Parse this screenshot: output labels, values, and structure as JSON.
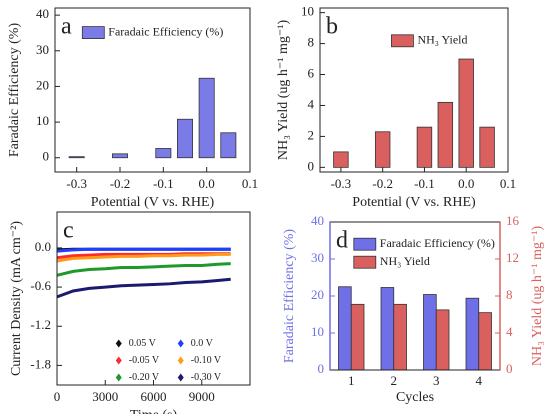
{
  "chart_data": [
    {
      "type": "bar",
      "panel_label": "a",
      "x": [
        -0.3,
        -0.2,
        -0.1,
        -0.05,
        0,
        0.05
      ],
      "series": [
        {
          "name": "Faradaic Efficiency (%)",
          "color": "#7b7be8",
          "values": [
            0.3,
            1.1,
            2.6,
            10.8,
            22.3,
            7.0
          ]
        }
      ],
      "xlabel": "Potential (V vs. RHE)",
      "ylabel": "Faradaic Efficiency (%)",
      "xlim": [
        -0.35,
        0.1
      ],
      "ylim": [
        -4,
        42
      ],
      "xticks": [
        -0.3,
        -0.2,
        -0.1,
        {
          "value": 0,
          "label": "0.0"
        },
        0.1
      ],
      "yticks": [
        0,
        10,
        20,
        30,
        40
      ],
      "legend": "upper left"
    },
    {
      "type": "bar",
      "panel_label": "b",
      "x": [
        -0.3,
        -0.2,
        -0.1,
        -0.05,
        0,
        0.05
      ],
      "series": [
        {
          "name": "NH₃ Yield",
          "color": "#d9605f",
          "values": [
            1.0,
            2.3,
            2.6,
            4.2,
            7.0,
            2.6
          ]
        }
      ],
      "xlabel": "Potential (V vs. RHE)",
      "ylabel": "NH₃ Yield (ug h⁻¹ mg⁻¹)",
      "xlim": [
        -0.35,
        0.1
      ],
      "ylim": [
        -0.3,
        10.3
      ],
      "xticks": [
        -0.3,
        -0.2,
        -0.1,
        {
          "value": 0,
          "label": "0.0"
        },
        0.1
      ],
      "yticks": [
        0,
        2,
        4,
        6,
        8,
        10
      ],
      "legend": "upper center"
    },
    {
      "type": "line",
      "panel_label": "c",
      "x": [
        0,
        1000,
        2000,
        3000,
        4000,
        5000,
        6000,
        7000,
        8000,
        9000,
        10000,
        10800
      ],
      "series": [
        {
          "name": "0.05 V",
          "color": "#111111",
          "values": [
            -0.03,
            -0.02,
            -0.02,
            -0.02,
            -0.02,
            -0.02,
            -0.02,
            -0.02,
            -0.02,
            -0.02,
            -0.02,
            -0.02
          ]
        },
        {
          "name": "0.0 V",
          "color": "#1f3fff",
          "values": [
            -0.05,
            -0.03,
            -0.02,
            -0.02,
            -0.02,
            -0.02,
            -0.02,
            -0.02,
            -0.02,
            -0.02,
            -0.02,
            -0.02
          ]
        },
        {
          "name": "-0.05 V",
          "color": "#ff2a2a",
          "values": [
            -0.15,
            -0.12,
            -0.11,
            -0.1,
            -0.1,
            -0.1,
            -0.1,
            -0.1,
            -0.09,
            -0.09,
            -0.09,
            -0.09
          ]
        },
        {
          "name": "-0.10 V",
          "color": "#ff9b1a",
          "values": [
            -0.2,
            -0.16,
            -0.15,
            -0.14,
            -0.13,
            -0.13,
            -0.12,
            -0.12,
            -0.11,
            -0.11,
            -0.1,
            -0.1
          ]
        },
        {
          "name": "-0.20 V",
          "color": "#1f9a2a",
          "values": [
            -0.42,
            -0.36,
            -0.33,
            -0.32,
            -0.3,
            -0.3,
            -0.29,
            -0.28,
            -0.27,
            -0.27,
            -0.25,
            -0.24
          ]
        },
        {
          "name": "-0.30 V",
          "color": "#1a1a70",
          "values": [
            -0.75,
            -0.66,
            -0.62,
            -0.6,
            -0.58,
            -0.57,
            -0.56,
            -0.55,
            -0.53,
            -0.52,
            -0.5,
            -0.48
          ]
        }
      ],
      "xlabel": "Time (s)",
      "ylabel": "Current Density (mA cm⁻²)",
      "xlim": [
        0,
        12000
      ],
      "ylim": [
        -2.1,
        0.55
      ],
      "xticks": [
        0,
        3000,
        6000,
        9000
      ],
      "yticks": [
        {
          "value": 0,
          "label": "0.0"
        },
        -0.6,
        -1.2,
        -1.8
      ],
      "legend": "lower center",
      "legend_columns": 2
    },
    {
      "type": "bar",
      "panel_label": "d",
      "categories": [
        "1",
        "2",
        "3",
        "4"
      ],
      "series": [
        {
          "name": "Faradaic Efficiency (%)",
          "color": "#6f6fe8",
          "values": [
            22.5,
            22.3,
            20.4,
            19.4
          ]
        },
        {
          "name": "NH₃ Yield",
          "color": "#d9605f",
          "axis": "y2",
          "values": [
            7.1,
            7.1,
            6.5,
            6.2
          ]
        }
      ],
      "xlabel": "Cycles",
      "ylabel": "Faradaic Efficiency (%)",
      "y2label": "NH₃ Yield (ug h⁻¹ mg⁻¹)",
      "ylim": [
        0,
        40
      ],
      "yticks": [
        0,
        10,
        20,
        30,
        40
      ],
      "y2lim": [
        0,
        16
      ],
      "y2ticks": [
        0,
        4,
        8,
        12,
        16
      ],
      "legend": "upper left"
    }
  ]
}
